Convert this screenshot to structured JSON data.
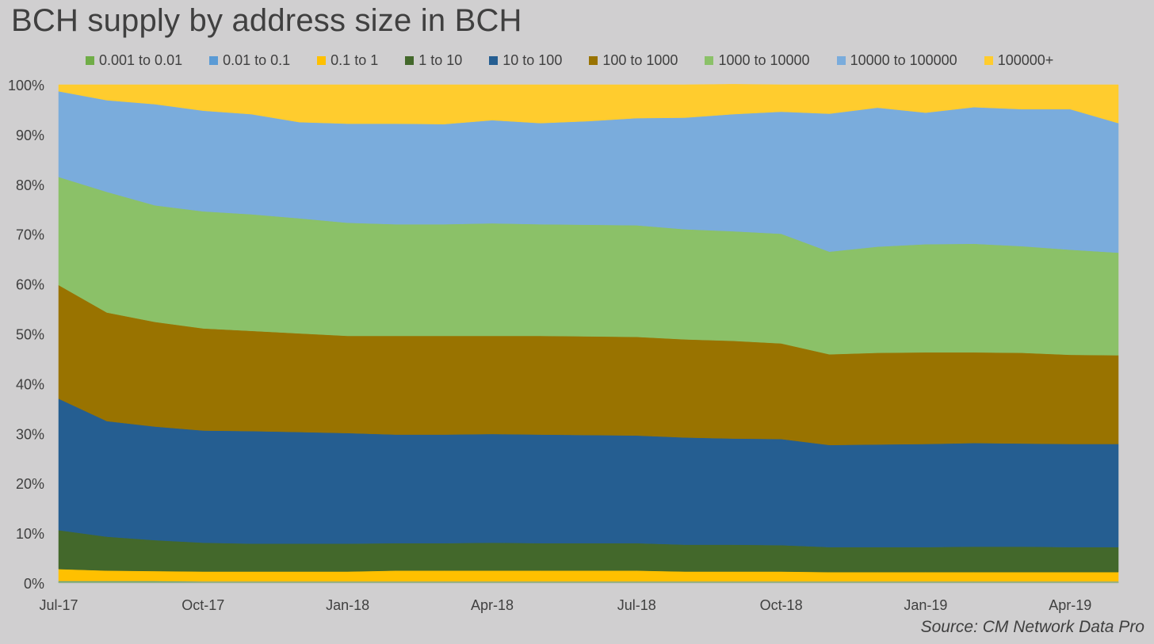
{
  "chart_data": {
    "type": "area",
    "stacked": "percent",
    "title": "BCH supply by address size in BCH",
    "x_ticks": [
      "Jul-17",
      "Oct-17",
      "Jan-18",
      "Apr-18",
      "Jul-18",
      "Oct-18",
      "Jan-19",
      "Apr-19"
    ],
    "x": [
      "Jul-17",
      "Aug-17",
      "Sep-17",
      "Oct-17",
      "Nov-17",
      "Dec-17",
      "Jan-18",
      "Feb-18",
      "Mar-18",
      "Apr-18",
      "May-18",
      "Jun-18",
      "Jul-18",
      "Aug-18",
      "Sep-18",
      "Oct-18",
      "Nov-18",
      "Dec-18",
      "Jan-19",
      "Feb-19",
      "Mar-19",
      "Apr-19",
      "Apr-19 (end)"
    ],
    "y_ticks": [
      "0%",
      "10%",
      "20%",
      "30%",
      "40%",
      "50%",
      "60%",
      "70%",
      "80%",
      "90%",
      "100%"
    ],
    "ylim": [
      0,
      100
    ],
    "legend_position": "top",
    "series": [
      {
        "name": "0.001 to 0.01",
        "color": "#70ad47",
        "values": [
          0.3,
          0.3,
          0.3,
          0.2,
          0.2,
          0.2,
          0.2,
          0.2,
          0.2,
          0.2,
          0.2,
          0.2,
          0.2,
          0.2,
          0.2,
          0.2,
          0.2,
          0.2,
          0.2,
          0.2,
          0.2,
          0.2,
          0.2
        ]
      },
      {
        "name": "0.01 to 0.1",
        "color": "#5b9bd5",
        "values": [
          0.1,
          0.1,
          0.1,
          0.1,
          0.1,
          0.1,
          0.1,
          0.1,
          0.1,
          0.1,
          0.1,
          0.1,
          0.1,
          0.1,
          0.1,
          0.1,
          0.1,
          0.1,
          0.1,
          0.1,
          0.1,
          0.1,
          0.1
        ]
      },
      {
        "name": "0.1 to 1",
        "color": "#ffc000",
        "values": [
          2.4,
          2.1,
          2.0,
          2.0,
          2.0,
          2.0,
          2.0,
          2.2,
          2.2,
          2.2,
          2.2,
          2.2,
          2.2,
          2.0,
          2.0,
          2.0,
          1.9,
          1.9,
          1.9,
          1.9,
          1.9,
          1.9,
          1.9
        ]
      },
      {
        "name": "1 to 10",
        "color": "#43682b",
        "values": [
          7.8,
          6.8,
          6.2,
          5.8,
          5.6,
          5.6,
          5.6,
          5.5,
          5.5,
          5.6,
          5.5,
          5.5,
          5.5,
          5.4,
          5.4,
          5.3,
          5.0,
          5.0,
          5.0,
          5.1,
          5.1,
          5.0,
          5.0
        ]
      },
      {
        "name": "10 to 100",
        "color": "#255e91",
        "values": [
          26.4,
          23.2,
          22.8,
          22.5,
          22.6,
          22.4,
          22.2,
          21.8,
          21.8,
          21.8,
          21.8,
          21.7,
          21.6,
          21.5,
          21.3,
          21.3,
          20.5,
          20.6,
          20.7,
          20.8,
          20.7,
          20.7,
          20.7
        ]
      },
      {
        "name": "100 to 1000",
        "color": "#997300",
        "values": [
          22.8,
          21.8,
          21.0,
          20.5,
          20.1,
          19.8,
          19.5,
          19.8,
          19.8,
          19.7,
          19.8,
          19.8,
          19.8,
          19.7,
          19.6,
          19.2,
          18.2,
          18.4,
          18.4,
          18.2,
          18.2,
          17.9,
          17.8
        ]
      },
      {
        "name": "1000 to 10000",
        "color": "#8bc168",
        "values": [
          21.7,
          24.2,
          23.4,
          23.5,
          23.4,
          23.1,
          22.7,
          22.4,
          22.4,
          22.6,
          22.4,
          22.4,
          22.4,
          22.1,
          22.0,
          22.0,
          20.6,
          21.3,
          21.7,
          21.8,
          21.4,
          21.1,
          20.6
        ]
      },
      {
        "name": "10000 to 100000",
        "color": "#7aacdc",
        "values": [
          17.2,
          18.4,
          20.3,
          20.2,
          20.1,
          19.3,
          19.9,
          20.2,
          20.1,
          20.7,
          20.3,
          20.8,
          21.5,
          22.4,
          23.5,
          24.5,
          27.7,
          27.9,
          26.4,
          27.4,
          27.5,
          28.2,
          26.0
        ]
      },
      {
        "name": "100000+",
        "color": "#ffcc2e",
        "values": [
          1.3,
          3.1,
          3.9,
          5.2,
          5.9,
          7.5,
          7.8,
          7.8,
          7.9,
          7.1,
          7.7,
          7.3,
          6.7,
          6.6,
          6.0,
          5.4,
          5.8,
          4.6,
          5.6,
          4.5,
          4.9,
          4.9,
          7.7
        ]
      }
    ],
    "source": "Source: CM Network Data Pro"
  }
}
